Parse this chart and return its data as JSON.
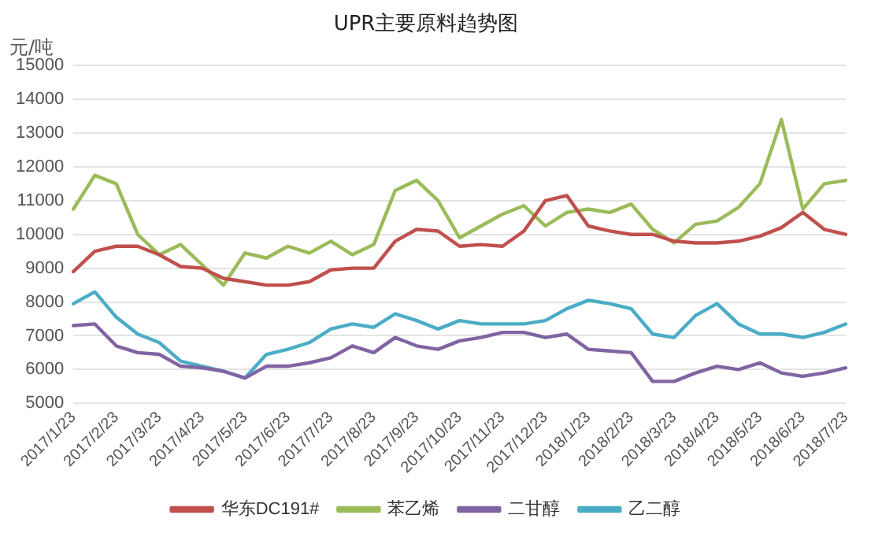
{
  "chart_data": {
    "type": "line",
    "title": "UPR主要原料趋势图",
    "ylabel": "元/吨",
    "categories": [
      "2017/1/23",
      null,
      "2017/2/23",
      null,
      "2017/3/23",
      null,
      "2017/4/23",
      null,
      "2017/5/23",
      null,
      "2017/6/23",
      null,
      "2017/7/23",
      null,
      "2017/8/23",
      null,
      "2017/9/23",
      null,
      "2017/10/23",
      null,
      "2017/11/23",
      null,
      "2017/12/23",
      null,
      "2018/1/23",
      null,
      "2018/2/23",
      null,
      "2018/3/23",
      null,
      "2018/4/23",
      null,
      "2018/5/23",
      null,
      "2018/6/23",
      null,
      "2018/7/23"
    ],
    "series": [
      {
        "name": "华东DC191#",
        "color": "#c0504d",
        "values": [
          8900,
          9500,
          9650,
          9650,
          9400,
          9050,
          9000,
          8700,
          8600,
          8500,
          8500,
          8600,
          8950,
          9000,
          9000,
          9800,
          10150,
          10100,
          9650,
          9700,
          9650,
          10100,
          11000,
          11150,
          10250,
          10100,
          10000,
          10000,
          9800,
          9750,
          9750,
          9800,
          9950,
          10200,
          10650,
          10150,
          10000
        ]
      },
      {
        "name": "苯乙烯",
        "color": "#9bbb59",
        "values": [
          10750,
          11750,
          11500,
          10000,
          9400,
          9700,
          9100,
          8500,
          9450,
          9300,
          9650,
          9450,
          9800,
          9400,
          9700,
          11300,
          11600,
          11000,
          9900,
          10250,
          10600,
          10850,
          10250,
          10650,
          10750,
          10650,
          10900,
          10150,
          9750,
          10300,
          10400,
          10800,
          11500,
          13400,
          10750,
          11500,
          11600
        ]
      },
      {
        "name": "二甘醇",
        "color": "#8064a2",
        "values": [
          7300,
          7350,
          6700,
          6500,
          6450,
          6100,
          6050,
          5950,
          5750,
          6100,
          6100,
          6200,
          6350,
          6700,
          6500,
          6950,
          6700,
          6600,
          6850,
          6950,
          7100,
          7100,
          6950,
          7050,
          6600,
          6550,
          6500,
          5650,
          5650,
          5900,
          6100,
          6000,
          6200,
          5900,
          5800,
          5900,
          6050
        ]
      },
      {
        "name": "乙二醇",
        "color": "#4bacc6",
        "values": [
          7950,
          8300,
          7550,
          7050,
          6800,
          6250,
          6100,
          5950,
          5750,
          6450,
          6600,
          6800,
          7200,
          7350,
          7250,
          7650,
          7450,
          7200,
          7450,
          7350,
          7350,
          7350,
          7450,
          7800,
          8050,
          7950,
          7800,
          7050,
          6950,
          7600,
          7950,
          7350,
          7050,
          7050,
          6950,
          7100,
          7350
        ]
      }
    ],
    "ylim": [
      5000,
      15000
    ],
    "yticks": [
      5000,
      6000,
      7000,
      8000,
      9000,
      10000,
      11000,
      12000,
      13000,
      14000,
      15000
    ],
    "grid": "y",
    "legend": "bottom",
    "marker": "none",
    "line_style": "solid"
  }
}
